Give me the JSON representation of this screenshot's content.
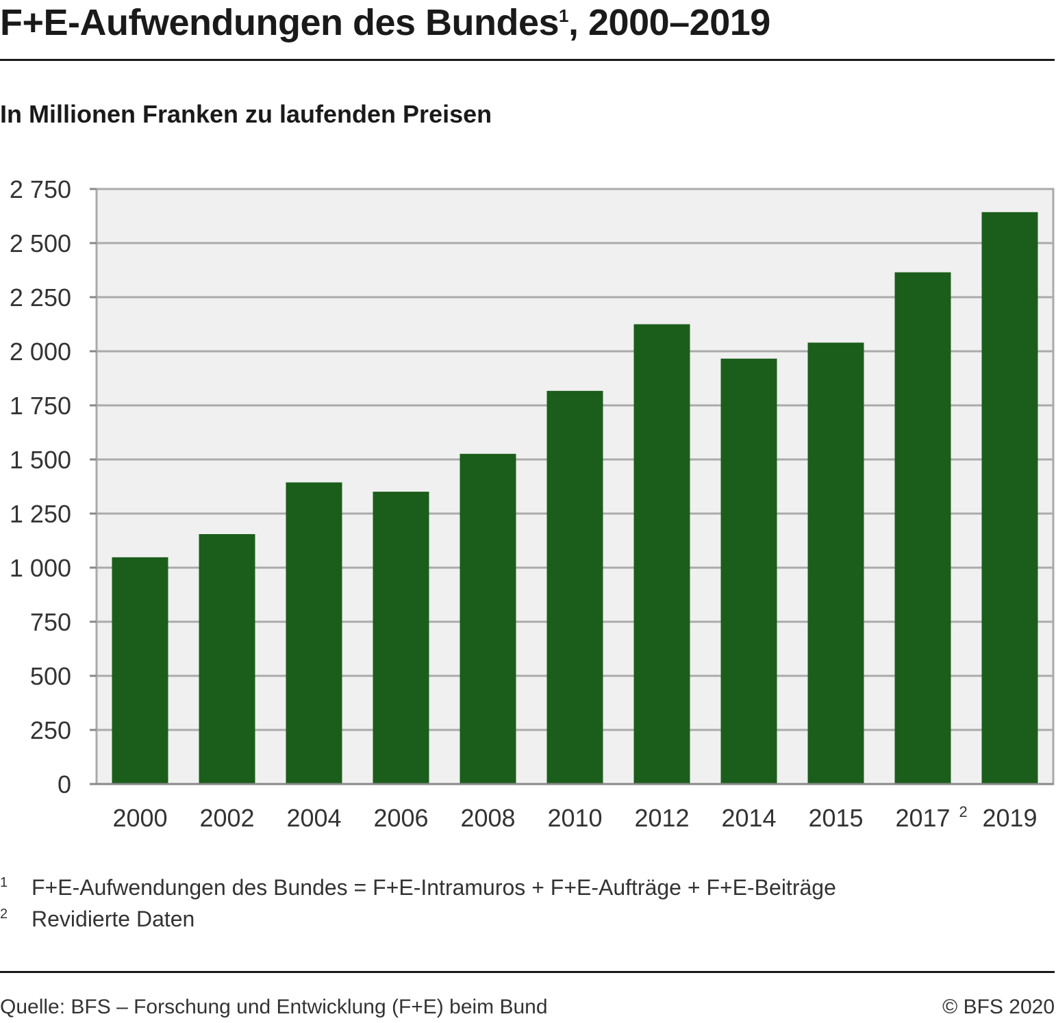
{
  "header": {
    "title": "F+E-Aufwendungen des Bundes",
    "title_sup": "1",
    "title_suffix": ", 2000–2019",
    "subtitle": "In Millionen Franken zu laufenden Preisen"
  },
  "chart_data": {
    "type": "bar",
    "categories": [
      "2000",
      "2002",
      "2004",
      "2006",
      "2008",
      "2010",
      "2012",
      "2014",
      "2015",
      "2017",
      "2019"
    ],
    "category_footnotes": {
      "2017": "2"
    },
    "values": [
      1048,
      1155,
      1394,
      1351,
      1526,
      1817,
      2125,
      1966,
      2040,
      2365,
      2643
    ],
    "yticks": [
      0,
      250,
      500,
      750,
      1000,
      1250,
      1500,
      1750,
      2000,
      2250,
      2500,
      2750
    ],
    "ytick_labels": [
      "0",
      "250",
      "500",
      "750",
      "1 000",
      "1 250",
      "1 500",
      "1 750",
      "2 000",
      "2 250",
      "2 500",
      "2 750"
    ],
    "ylim": [
      0,
      2750
    ],
    "grid": true,
    "bar_color": "#1b5e1b",
    "plot_background": "#f0f0f0",
    "gridline_color": "#aaaaaa"
  },
  "footnotes": [
    {
      "mark": "1",
      "text": "F+E-Aufwendungen des Bundes = F+E-Intramuros + F+E-Aufträge + F+E-Beiträge"
    },
    {
      "mark": "2",
      "text": "Revidierte Daten"
    }
  ],
  "footer": {
    "source": "Quelle: BFS – Forschung und Entwicklung (F+E) beim Bund",
    "copyright": "© BFS 2020"
  }
}
